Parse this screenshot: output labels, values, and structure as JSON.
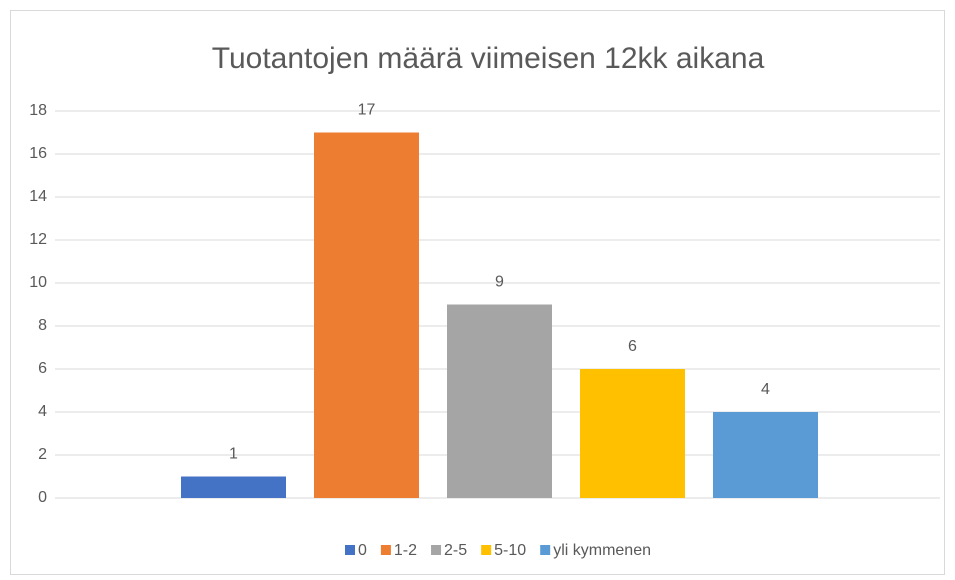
{
  "chart_data": {
    "type": "bar",
    "title": "Tuotantojen määrä viimeisen 12kk aikana",
    "categories": [
      null
    ],
    "series": [
      {
        "name": "0",
        "color": "#4472c4",
        "values": [
          1
        ]
      },
      {
        "name": "1-2",
        "color": "#ed7d31",
        "values": [
          17
        ]
      },
      {
        "name": "2-5",
        "color": "#a5a5a5",
        "values": [
          9
        ]
      },
      {
        "name": "5-10",
        "color": "#ffc000",
        "values": [
          6
        ]
      },
      {
        "name": "yli kymmenen",
        "color": "#5b9bd5",
        "values": [
          4
        ]
      }
    ],
    "ylim": [
      0,
      18
    ],
    "yticks": [
      0,
      2,
      4,
      6,
      8,
      10,
      12,
      14,
      16,
      18
    ],
    "grid": true,
    "legend": "bottom",
    "data_labels": true
  }
}
